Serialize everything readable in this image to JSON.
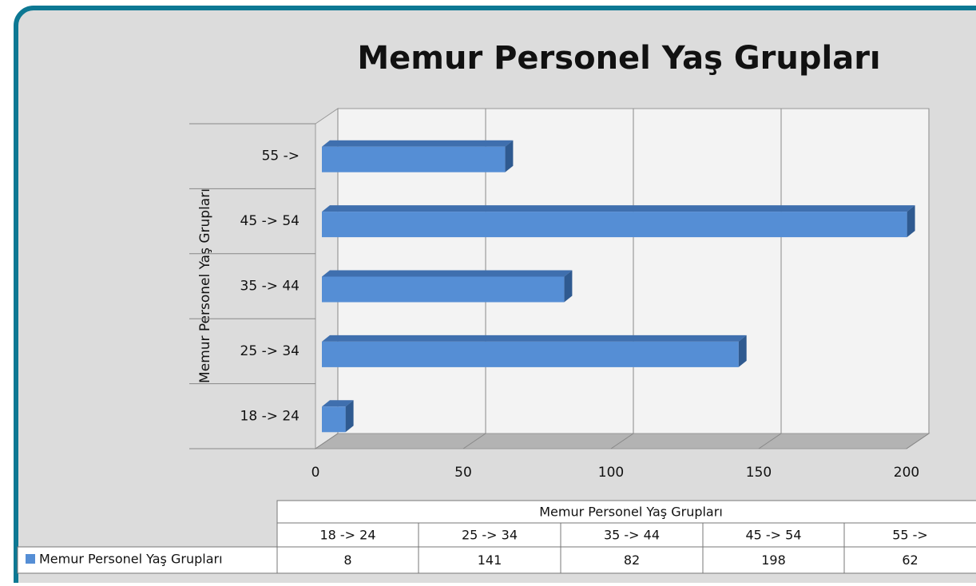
{
  "chart_data": {
    "type": "bar3d",
    "orientation": "horizontal",
    "title": "Memur Personel Yaş Grupları",
    "ylabel": "Memur Personel Yaş Grupları",
    "categories": [
      "18 -> 24",
      "25 -> 34",
      "35 -> 44",
      "45 -> 54",
      "55 ->"
    ],
    "series": [
      {
        "name": "Memur Personel Yaş Grupları",
        "color": "#558ed5",
        "values": [
          8,
          141,
          82,
          198,
          62
        ]
      }
    ],
    "xlim": [
      0,
      200
    ],
    "xticks": [
      0,
      50,
      100,
      150,
      200
    ],
    "grid": true,
    "data_table": true
  }
}
